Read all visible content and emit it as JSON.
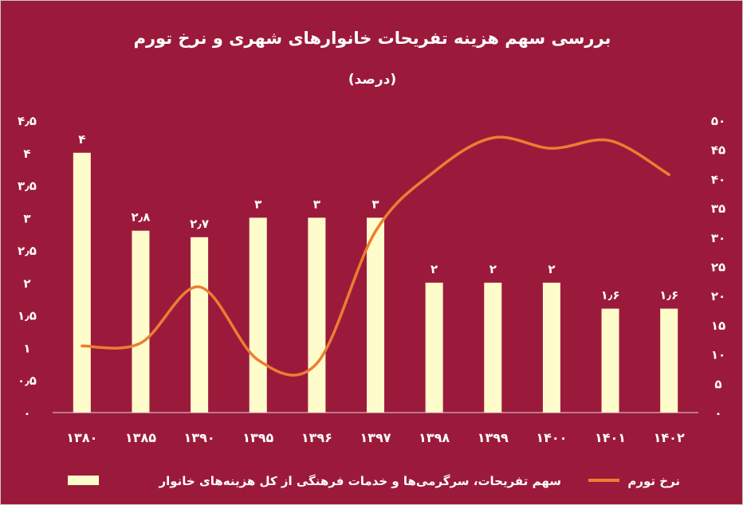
{
  "colors": {
    "background": "#9b1a3c",
    "bar": "#fffccb",
    "line": "#ed7d31",
    "text": "#ffffff",
    "axis": "#d9d9d9"
  },
  "chart_data": {
    "type": "bar",
    "title": "بررسی سهم هزینه تفریحات خانوارهای شهری و نرخ تورم",
    "subtitle": "(درصد)",
    "categories": [
      "۱۳۸۰",
      "۱۳۸۵",
      "۱۳۹۰",
      "۱۳۹۵",
      "۱۳۹۶",
      "۱۳۹۷",
      "۱۳۹۸",
      "۱۳۹۹",
      "۱۴۰۰",
      "۱۴۰۱",
      "۱۴۰۲"
    ],
    "series": [
      {
        "name": "سهم تفریحات، سرگرمی‌ها و خدمات فرهنگی از کل هزینه‌های خانوار",
        "type": "bar",
        "axis": "left",
        "values": [
          4,
          2.8,
          2.7,
          3,
          3,
          3,
          2,
          2,
          2,
          1.6,
          1.6
        ],
        "labels": [
          "۴",
          "۲٫۸",
          "۲٫۷",
          "۳",
          "۳",
          "۳",
          "۲",
          "۲",
          "۲",
          "۱٫۶",
          "۱٫۶"
        ]
      },
      {
        "name": "نرخ تورم",
        "type": "line",
        "axis": "right",
        "smooth": true,
        "values": [
          11.4,
          11.9,
          21.5,
          9,
          8.4,
          31,
          41.2,
          47,
          45.2,
          46.5,
          40.7
        ]
      }
    ],
    "y_left": {
      "range": [
        0,
        4.5
      ],
      "ticks": [
        0,
        0.5,
        1,
        1.5,
        2,
        2.5,
        3,
        3.5,
        4,
        4.5
      ],
      "tick_labels": [
        "۰",
        "۰٫۵",
        "۱",
        "۱٫۵",
        "۲",
        "۲٫۵",
        "۳",
        "۳٫۵",
        "۴",
        "۴٫۵"
      ]
    },
    "y_right": {
      "range": [
        0,
        50
      ],
      "ticks": [
        0,
        5,
        10,
        15,
        20,
        25,
        30,
        35,
        40,
        45,
        50
      ],
      "tick_labels": [
        "۰",
        "۵",
        "۱۰",
        "۱۵",
        "۲۰",
        "۲۵",
        "۳۰",
        "۳۵",
        "۴۰",
        "۴۵",
        "۵۰"
      ]
    },
    "grid": false,
    "legend": "bottom"
  }
}
